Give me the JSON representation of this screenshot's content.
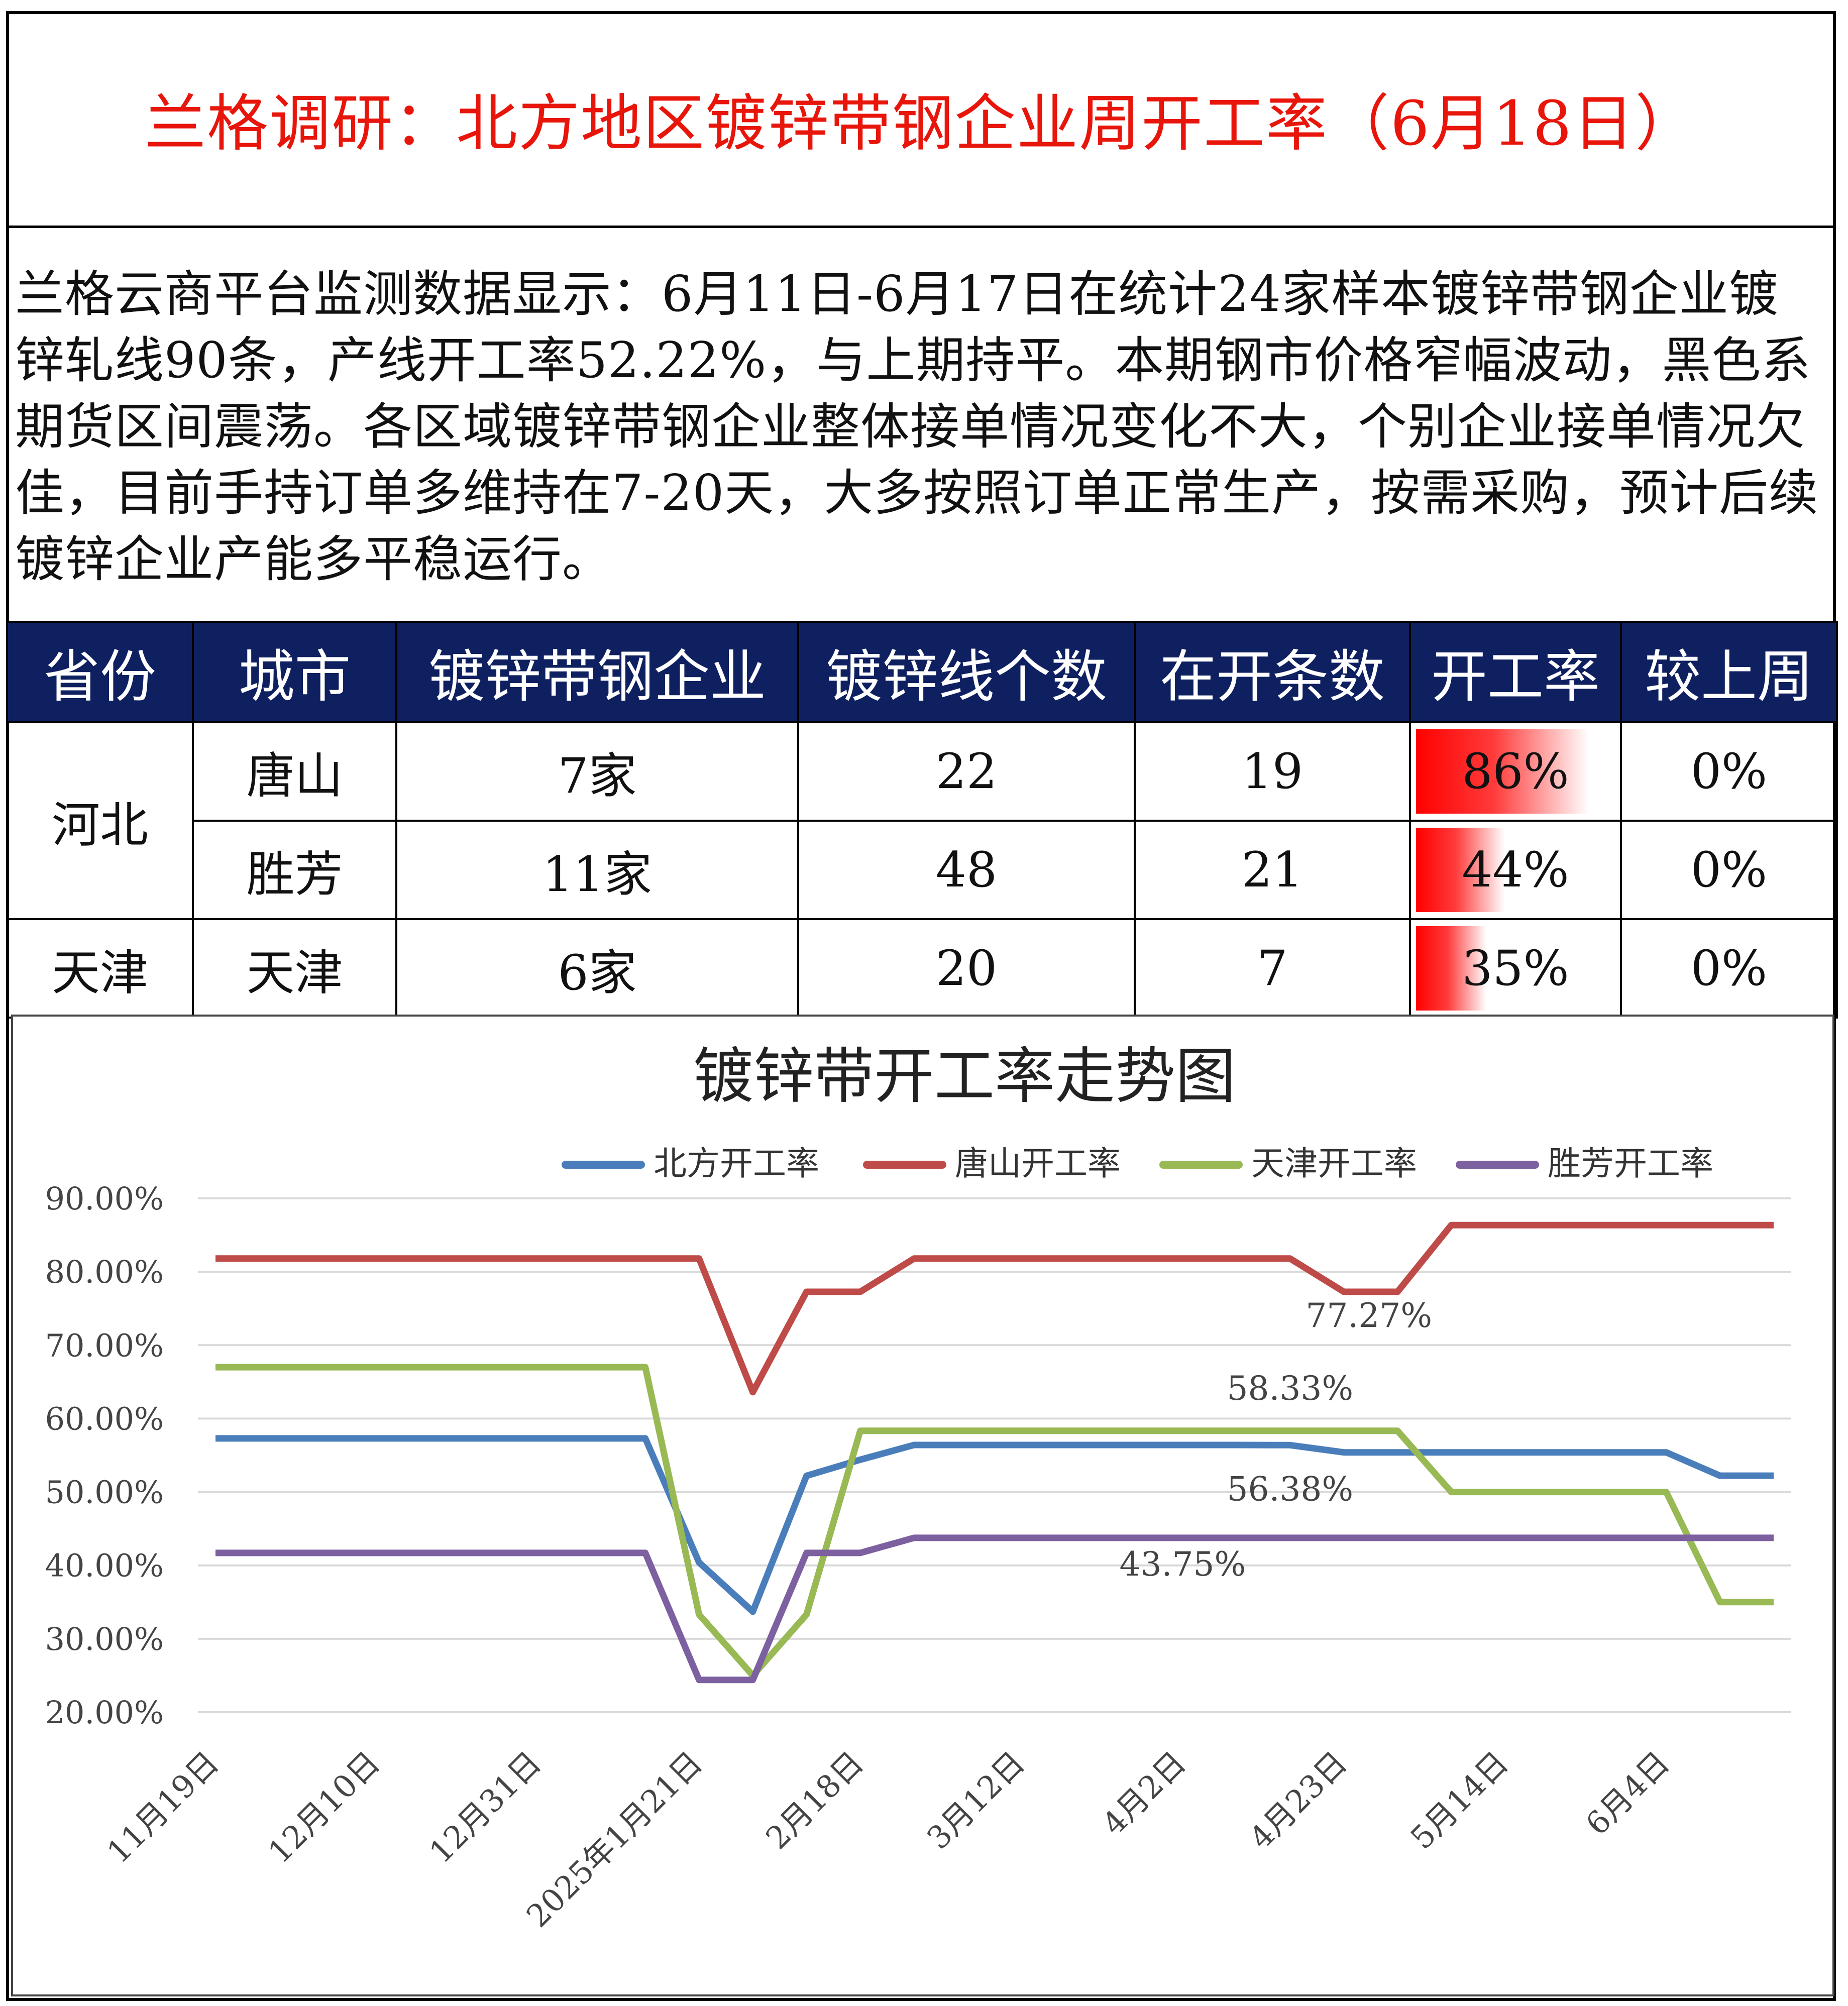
{
  "title": "兰格调研：北方地区镀锌带钢企业周开工率（6月18日）",
  "description": "兰格云商平台监测数据显示：6月11日-6月17日在统计24家样本镀锌带钢企业镀锌轧线90条，产线开工率52.22%，与上期持平。本期钢市价格窄幅波动，黑色系期货区间震荡。各区域镀锌带钢企业整体接单情况变化不大，个别企业接单情况欠佳，目前手持订单多维持在7-20天，大多按照订单正常生产，按需采购，预计后续镀锌企业产能多平稳运行。",
  "table": {
    "headers": [
      "省份",
      "城市",
      "镀锌带钢企业",
      "镀锌线个数",
      "在开条数",
      "开工率",
      "较上周"
    ],
    "rows": [
      {
        "province": "河北",
        "city": "唐山",
        "companies": "7家",
        "lines": "22",
        "running": "19",
        "rate": "86%",
        "rate_value": 0.86,
        "change": "0%"
      },
      {
        "province": "",
        "city": "胜芳",
        "companies": "11家",
        "lines": "48",
        "running": "21",
        "rate": "44%",
        "rate_value": 0.44,
        "change": "0%"
      },
      {
        "province": "天津",
        "city": "天津",
        "companies": "6家",
        "lines": "20",
        "running": "7",
        "rate": "35%",
        "rate_value": 0.35,
        "change": "0%"
      }
    ]
  },
  "chart_data": {
    "type": "line",
    "title": "镀锌带开工率走势图",
    "xlabel": "",
    "ylabel": "",
    "ylim": [
      20,
      90
    ],
    "yticks": [
      "20.00%",
      "30.00%",
      "40.00%",
      "50.00%",
      "60.00%",
      "70.00%",
      "80.00%",
      "90.00%"
    ],
    "x_tick_labels": [
      "11月19日",
      "12月10日",
      "12月31日",
      "2025年1月21日",
      "2月18日",
      "3月12日",
      "4月2日",
      "4月23日",
      "5月14日",
      "6月4日"
    ],
    "x_tick_indices": [
      0,
      3,
      6,
      9,
      12,
      15,
      18,
      21,
      24,
      27
    ],
    "grid": true,
    "legend_position": "top",
    "series": [
      {
        "name": "北方开工率",
        "color": "#4a7ebb",
        "values": [
          57.3,
          57.3,
          57.3,
          57.3,
          57.3,
          57.3,
          57.3,
          57.3,
          57.3,
          40.4,
          33.7,
          52.2,
          54.4,
          56.4,
          56.4,
          56.4,
          56.4,
          56.4,
          56.4,
          56.4,
          56.38,
          55.4,
          55.4,
          55.4,
          55.4,
          55.4,
          55.4,
          55.4,
          52.22,
          52.22
        ]
      },
      {
        "name": "唐山开工率",
        "color": "#be4b48",
        "values": [
          81.8,
          81.8,
          81.8,
          81.8,
          81.8,
          81.8,
          81.8,
          81.8,
          81.8,
          81.8,
          63.6,
          77.27,
          77.27,
          81.8,
          81.8,
          81.8,
          81.8,
          81.8,
          81.8,
          81.8,
          81.8,
          77.27,
          77.27,
          86.36,
          86.36,
          86.36,
          86.36,
          86.36,
          86.36,
          86.36
        ]
      },
      {
        "name": "天津开工率",
        "color": "#98b954",
        "values": [
          67,
          67,
          67,
          67,
          67,
          67,
          67,
          67,
          67,
          33.3,
          25,
          33.3,
          58.33,
          58.33,
          58.33,
          58.33,
          58.33,
          58.33,
          58.33,
          58.33,
          58.33,
          58.33,
          58.33,
          50,
          50,
          50,
          50,
          50,
          35,
          35
        ]
      },
      {
        "name": "胜芳开工率",
        "color": "#7d60a0",
        "values": [
          41.7,
          41.7,
          41.7,
          41.7,
          41.7,
          41.7,
          41.7,
          41.7,
          41.7,
          24.4,
          24.4,
          41.7,
          41.7,
          43.75,
          43.75,
          43.75,
          43.75,
          43.75,
          43.75,
          43.75,
          43.75,
          43.75,
          43.75,
          43.75,
          43.75,
          43.75,
          43.75,
          43.75,
          43.75,
          43.75
        ]
      }
    ],
    "annotations": [
      {
        "text": "77.27%",
        "x_index": 21,
        "value": 77.27,
        "series": "唐山开工率"
      },
      {
        "text": "58.33%",
        "x_index": 20,
        "value": 58.33,
        "series": "天津开工率"
      },
      {
        "text": "56.38%",
        "x_index": 20,
        "value": 56.38,
        "series": "北方开工率"
      },
      {
        "text": "43.75%",
        "x_index": 18,
        "value": 43.75,
        "series": "胜芳开工率"
      }
    ]
  }
}
